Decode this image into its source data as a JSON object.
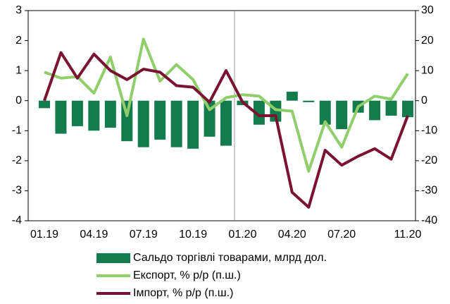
{
  "chart_data": {
    "type": "bar",
    "categories": [
      "01.19",
      null,
      null,
      "04.19",
      null,
      null,
      "07.19",
      null,
      null,
      "10.19",
      null,
      null,
      "01.20",
      null,
      null,
      "04.20",
      null,
      null,
      "07.20",
      null,
      null,
      null,
      "11.20"
    ],
    "series": [
      {
        "name": "Сальдо торгівлі товарами, млрд дол.",
        "type": "bar",
        "axis": "y",
        "color": "#137b4c",
        "values": [
          -0.25,
          -1.1,
          -0.85,
          -1.0,
          -0.9,
          -1.35,
          -1.55,
          -1.3,
          -1.55,
          -1.6,
          -1.2,
          -1.5,
          -0.15,
          -0.8,
          -0.7,
          0.3,
          -0.05,
          -0.8,
          -0.95,
          -0.4,
          -0.65,
          -0.5,
          -0.55
        ]
      },
      {
        "name": "Експорт, % р/р (п.ш.)",
        "type": "line",
        "axis": "y2",
        "color": "#8fce6a",
        "values": [
          9.5,
          7.5,
          8,
          2.5,
          14.5,
          -5,
          20.5,
          6.5,
          12,
          7,
          -3,
          1,
          2,
          1.5,
          -3,
          -3.5,
          -23.5,
          -7,
          -15.5,
          -2,
          1.5,
          0.5,
          9
        ]
      },
      {
        "name": "Імпорт, % р/р (п.ш.)",
        "type": "line",
        "axis": "y2",
        "color": "#7a1232",
        "values": [
          0,
          16,
          7.5,
          15.5,
          10,
          7,
          10.5,
          9.5,
          5,
          4.5,
          -0.5,
          10,
          -0.5,
          -5,
          -5,
          -30.5,
          -35.5,
          -16.5,
          -21.5,
          -18.5,
          -16,
          -19.5,
          -5
        ]
      }
    ],
    "ylim": [
      -4,
      3
    ],
    "yticks": [
      -4,
      -3,
      -2,
      -1,
      0,
      1,
      2,
      3
    ],
    "y2lim": [
      -40,
      30
    ],
    "y2ticks": [
      -40,
      -30,
      -20,
      -10,
      0,
      10,
      20,
      30
    ]
  }
}
